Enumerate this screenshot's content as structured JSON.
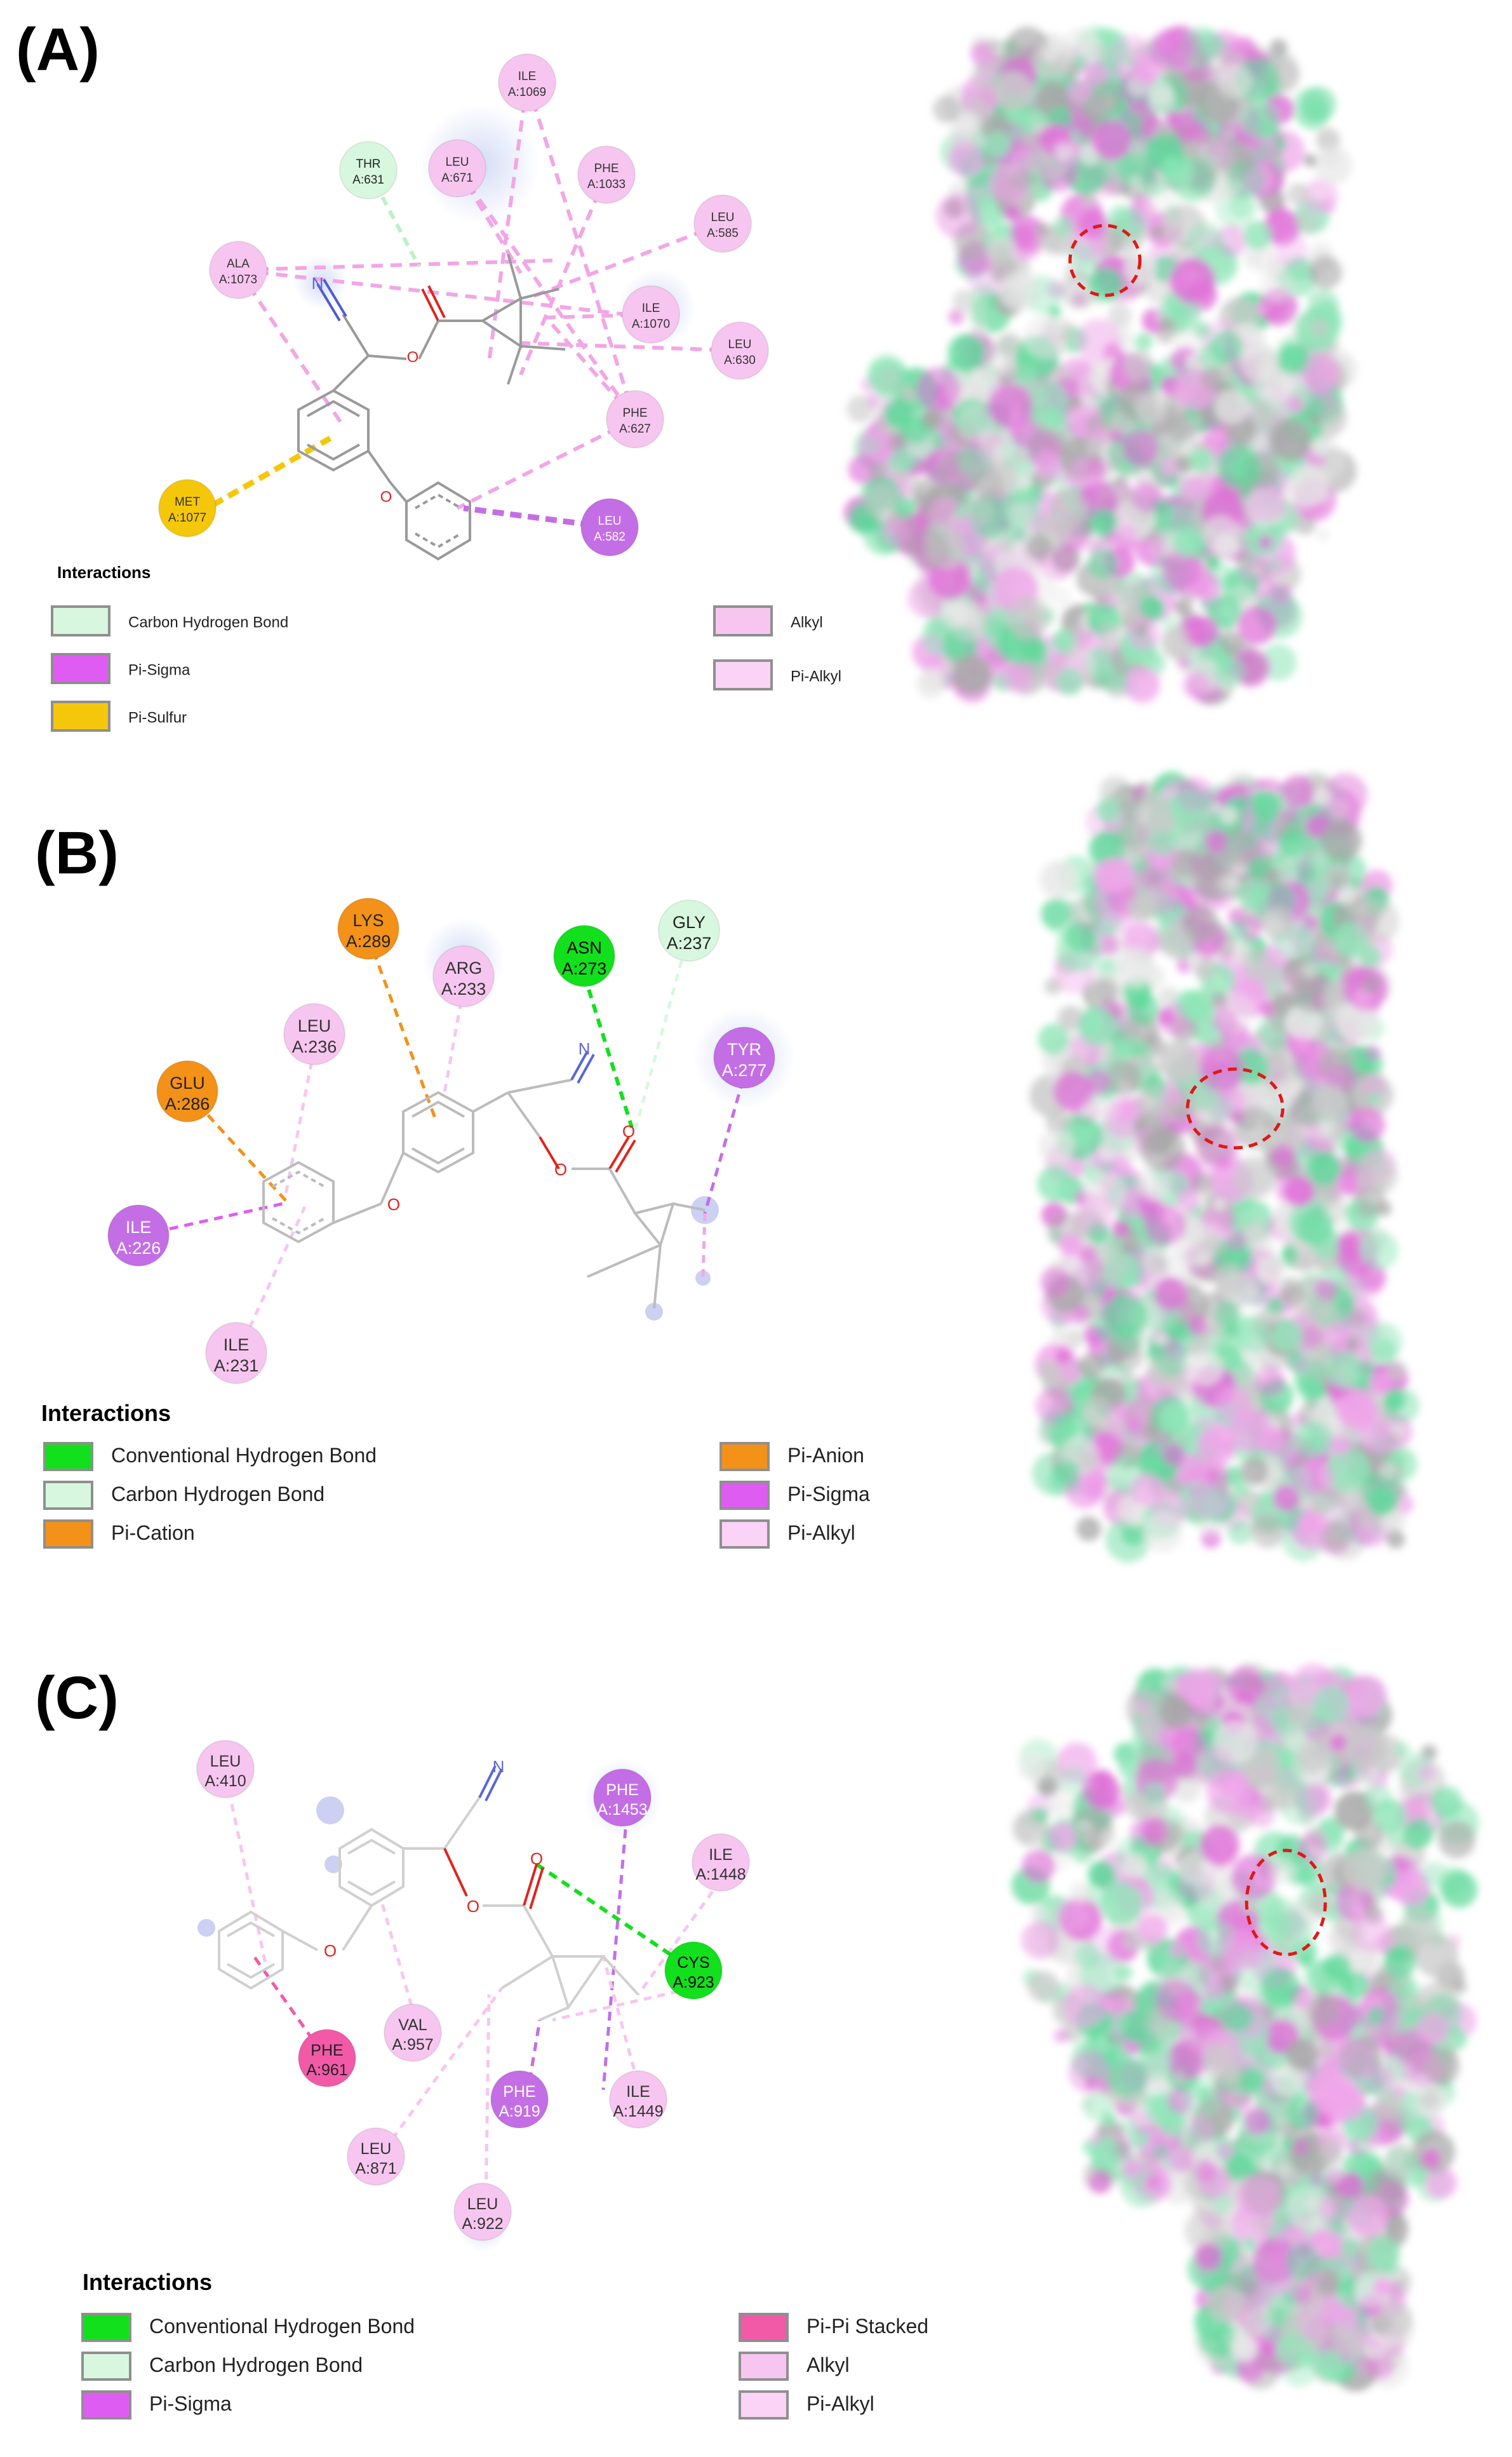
{
  "panels": [
    {
      "label": "(A)",
      "legend": {
        "title": "Interactions",
        "entries": [
          {
            "label": "Carbon Hydrogen Bond",
            "color": "#d7f8de",
            "border": "#8f8f8f"
          },
          {
            "label": "Pi-Sigma",
            "color": "#df5cf2",
            "border": "#8f8f8f"
          },
          {
            "label": "Pi-Sulfur",
            "color": "#f5c70a",
            "border": "#8f8f8f"
          },
          {
            "label": "Alkyl",
            "color": "#f7c6f0",
            "border": "#8f8f8f"
          },
          {
            "label": "Pi-Alkyl",
            "color": "#fbd3f6",
            "border": "#8f8f8f"
          }
        ]
      },
      "residues": [
        {
          "name": "ILE",
          "id": "A:1069",
          "type": "alkyl"
        },
        {
          "name": "THR",
          "id": "A:631",
          "type": "ch"
        },
        {
          "name": "LEU",
          "id": "A:671",
          "type": "alkyl"
        },
        {
          "name": "PHE",
          "id": "A:1033",
          "type": "alkyl"
        },
        {
          "name": "LEU",
          "id": "A:585",
          "type": "alkyl"
        },
        {
          "name": "ALA",
          "id": "A:1073",
          "type": "alkyl"
        },
        {
          "name": "ILE",
          "id": "A:1070",
          "type": "alkyl"
        },
        {
          "name": "LEU",
          "id": "A:630",
          "type": "alkyl"
        },
        {
          "name": "PHE",
          "id": "A:627",
          "type": "alkyl"
        },
        {
          "name": "MET",
          "id": "A:1077",
          "type": "pisulfur"
        },
        {
          "name": "LEU",
          "id": "A:582",
          "type": "pisigma"
        }
      ]
    },
    {
      "label": "(B)",
      "legend": {
        "title": "Interactions",
        "entries": [
          {
            "label": "Conventional Hydrogen Bond",
            "color": "#12e01c",
            "border": "#8f8f8f"
          },
          {
            "label": "Carbon Hydrogen Bond",
            "color": "#d7f8de",
            "border": "#8f8f8f"
          },
          {
            "label": "Pi-Cation",
            "color": "#f39118",
            "border": "#8f8f8f"
          },
          {
            "label": "Pi-Anion",
            "color": "#f39118",
            "border": "#8f8f8f"
          },
          {
            "label": "Pi-Sigma",
            "color": "#df5cf2",
            "border": "#8f8f8f"
          },
          {
            "label": "Pi-Alkyl",
            "color": "#fbd3f6",
            "border": "#8f8f8f"
          }
        ]
      },
      "residues": [
        {
          "name": "LYS",
          "id": "A:289",
          "type": "pication"
        },
        {
          "name": "ARG",
          "id": "A:233",
          "type": "alkyl"
        },
        {
          "name": "ASN",
          "id": "A:273",
          "type": "hbond"
        },
        {
          "name": "GLY",
          "id": "A:237",
          "type": "ch"
        },
        {
          "name": "LEU",
          "id": "A:236",
          "type": "alkyl"
        },
        {
          "name": "TYR",
          "id": "A:277",
          "type": "pisigma"
        },
        {
          "name": "GLU",
          "id": "A:286",
          "type": "pication"
        },
        {
          "name": "ILE",
          "id": "A:226",
          "type": "pisigma"
        },
        {
          "name": "ILE",
          "id": "A:231",
          "type": "alkyl"
        }
      ]
    },
    {
      "label": "(C)",
      "legend": {
        "title": "Interactions",
        "entries": [
          {
            "label": "Conventional Hydrogen Bond",
            "color": "#12e01c",
            "border": "#8f8f8f"
          },
          {
            "label": "Carbon Hydrogen Bond",
            "color": "#d7f8de",
            "border": "#8f8f8f"
          },
          {
            "label": "Pi-Sigma",
            "color": "#df5cf2",
            "border": "#8f8f8f"
          },
          {
            "label": "Pi-Pi Stacked",
            "color": "#f25aa8",
            "border": "#8f8f8f"
          },
          {
            "label": "Alkyl",
            "color": "#f7c6f0",
            "border": "#8f8f8f"
          },
          {
            "label": "Pi-Alkyl",
            "color": "#fbd3f6",
            "border": "#8f8f8f"
          }
        ]
      },
      "residues": [
        {
          "name": "LEU",
          "id": "A:410",
          "type": "alkyl"
        },
        {
          "name": "PHE",
          "id": "A:1453",
          "type": "pisigma"
        },
        {
          "name": "ILE",
          "id": "A:1448",
          "type": "alkyl"
        },
        {
          "name": "CYS",
          "id": "A:923",
          "type": "hbond"
        },
        {
          "name": "VAL",
          "id": "A:957",
          "type": "alkyl"
        },
        {
          "name": "PHE",
          "id": "A:961",
          "type": "pipi"
        },
        {
          "name": "PHE",
          "id": "A:919",
          "type": "pisigma"
        },
        {
          "name": "ILE",
          "id": "A:1449",
          "type": "alkyl"
        },
        {
          "name": "LEU",
          "id": "A:871",
          "type": "alkyl"
        },
        {
          "name": "LEU",
          "id": "A:922",
          "type": "alkyl"
        }
      ]
    }
  ],
  "atoms": {
    "nitrogen": "N",
    "oxygen": "O"
  },
  "colors": {
    "hbond": "#12e01c",
    "ch": "#d7f8de",
    "pisigma": "#c46ee6",
    "pisulfur": "#f5c70a",
    "pication": "#f39118",
    "pipi": "#f25aa8",
    "alkyl": "#f7c6f0",
    "line_alkyl": "#f2a6e6",
    "bond_gray": "#9a9a9a",
    "nitrogen_blue": "#5a67d8",
    "oxygen_red": "#e0241c",
    "surface_green": "#5ed89a",
    "surface_magenta": "#e070d8",
    "surface_gray": "#c9c9c9",
    "marker_red": "#e01818"
  }
}
